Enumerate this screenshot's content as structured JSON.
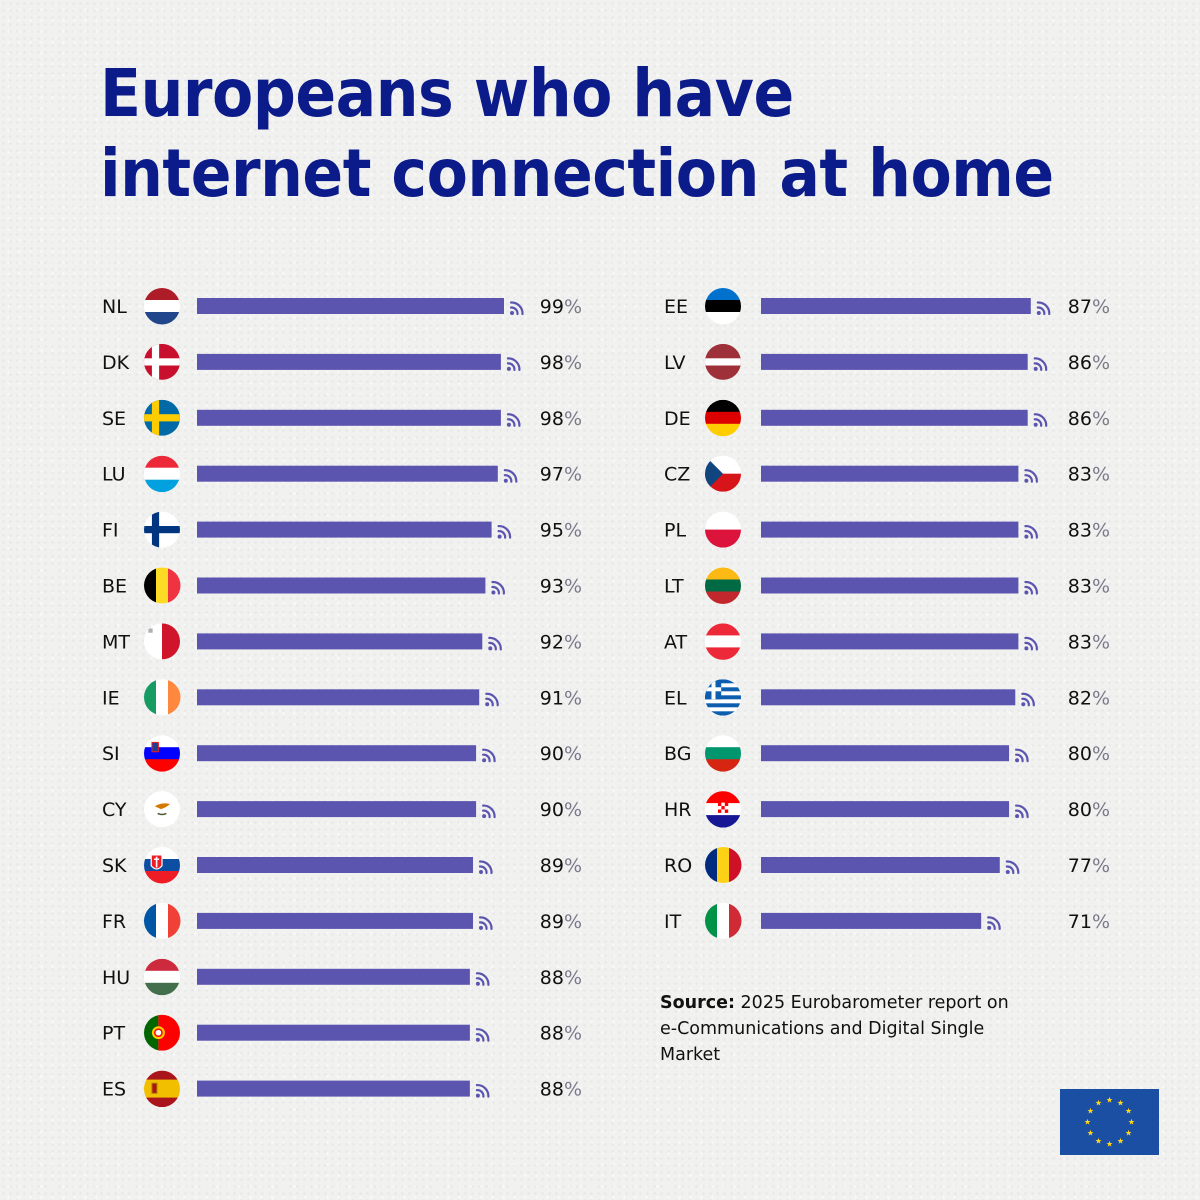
{
  "title": {
    "line1": "Europeans who have",
    "line2": "internet connection at home"
  },
  "source": {
    "label": "Source:",
    "text": "2025 Eurobarometer report on e-Communications and Digital Single Market"
  },
  "logo": "eu-flag",
  "colors": {
    "title": "#0b1b8a",
    "bar": "#5b55b0",
    "wifi_icon": "#5b55b0",
    "eu_blue": "#1b4fa3",
    "eu_star": "#ffd617"
  },
  "chart_data": {
    "type": "bar",
    "orientation": "horizontal",
    "unit": "%",
    "columns": [
      {
        "categories": [
          "NL",
          "DK",
          "SE",
          "LU",
          "FI",
          "BE",
          "MT",
          "IE",
          "SI",
          "CY",
          "SK",
          "FR",
          "HU",
          "PT",
          "ES"
        ],
        "values": [
          99,
          98,
          98,
          97,
          95,
          93,
          92,
          91,
          90,
          90,
          89,
          89,
          88,
          88,
          88
        ],
        "flags": [
          "NL",
          "DK",
          "SE",
          "LU",
          "FI",
          "BE",
          "MT",
          "IE",
          "SI",
          "CY",
          "SK",
          "FR",
          "HU",
          "PT",
          "ES"
        ]
      },
      {
        "categories": [
          "EE",
          "LV",
          "DE",
          "CZ",
          "PL",
          "LT",
          "AT",
          "EL",
          "BG",
          "HR",
          "RO",
          "IT"
        ],
        "values": [
          87,
          86,
          86,
          83,
          83,
          83,
          83,
          82,
          80,
          80,
          77,
          71
        ],
        "flags": [
          "EE",
          "LV",
          "DE",
          "CZ",
          "PL",
          "LT",
          "AT",
          "EL",
          "BG",
          "HR",
          "RO",
          "IT"
        ]
      }
    ]
  }
}
